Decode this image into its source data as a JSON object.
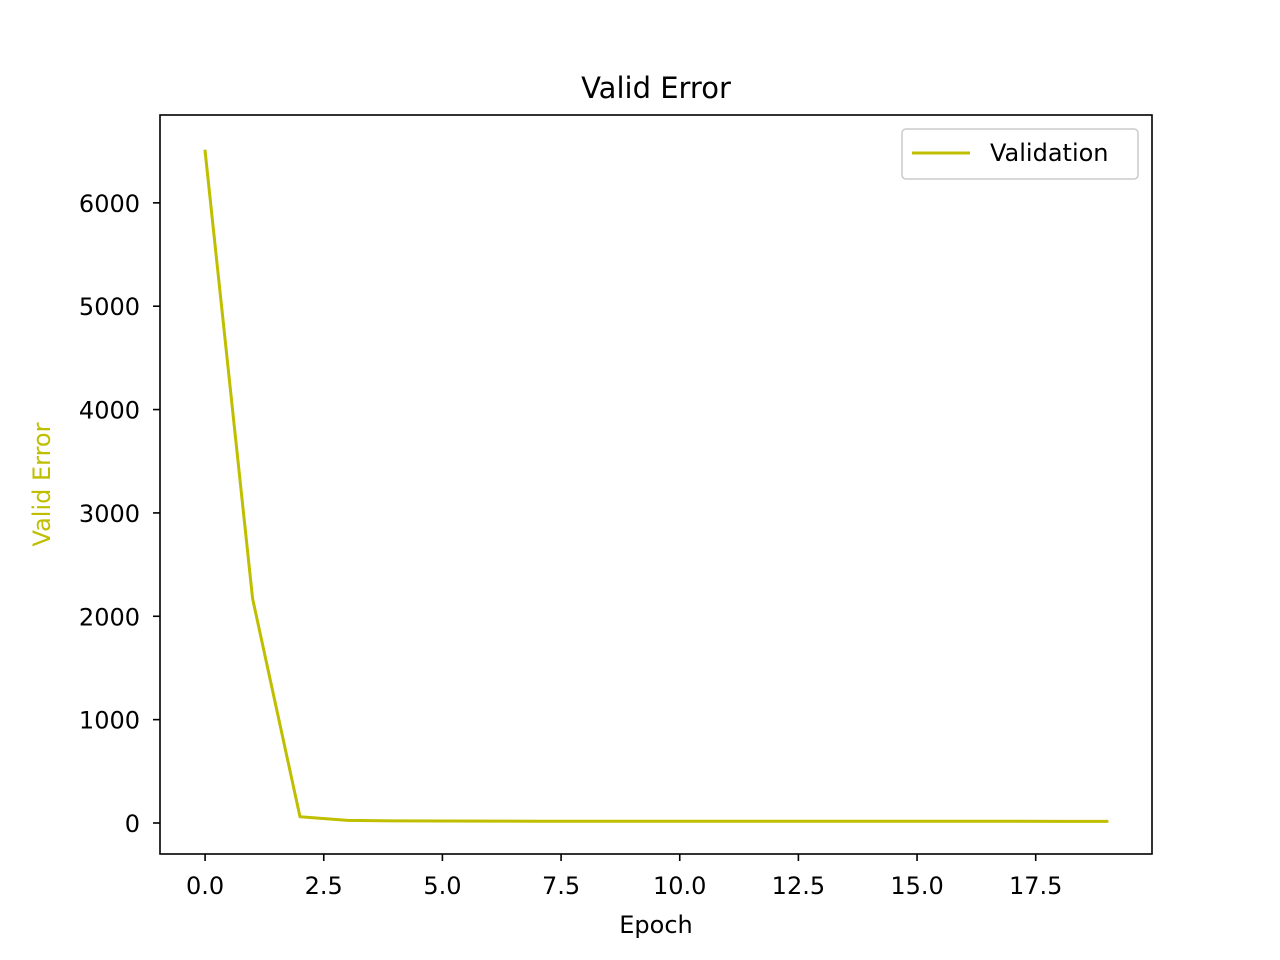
{
  "chart_data": {
    "type": "line",
    "title": "Valid Error",
    "xlabel": "Epoch",
    "ylabel": "Valid Error",
    "xlim": [
      -0.95,
      19.95
    ],
    "ylim": [
      -300,
      6850
    ],
    "x_ticks": [
      0.0,
      2.5,
      5.0,
      7.5,
      10.0,
      12.5,
      15.0,
      17.5
    ],
    "x_tick_labels": [
      "0.0",
      "2.5",
      "5.0",
      "7.5",
      "10.0",
      "12.5",
      "15.0",
      "17.5"
    ],
    "y_ticks": [
      0,
      1000,
      2000,
      3000,
      4000,
      5000,
      6000
    ],
    "y_tick_labels": [
      "0",
      "1000",
      "2000",
      "3000",
      "4000",
      "5000",
      "6000"
    ],
    "grid": false,
    "legend_position": "top-right",
    "colors": {
      "series": "#bfbf00",
      "ylabel": "#bfbf00",
      "axes": "#000000"
    },
    "series": [
      {
        "name": "Validation",
        "x": [
          0,
          1,
          2,
          3,
          4,
          5,
          6,
          7,
          8,
          9,
          10,
          11,
          12,
          13,
          14,
          15,
          16,
          17,
          18,
          19
        ],
        "values": [
          6500,
          2170,
          60,
          25,
          20,
          19,
          18,
          17,
          17,
          17,
          17,
          17,
          16,
          16,
          16,
          16,
          16,
          16,
          15,
          15
        ]
      }
    ]
  }
}
